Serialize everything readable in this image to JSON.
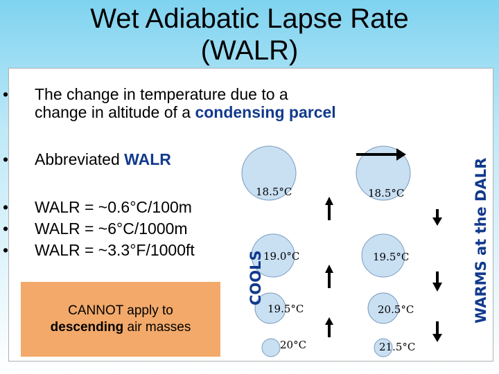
{
  "title": {
    "line1": "Wet Adiabatic Lapse Rate",
    "line2": "(WALR)"
  },
  "bullets": {
    "b1": {
      "marker": "•",
      "line1": "The change in temperature due to a",
      "line2_pre": "change in altitude of a ",
      "line2_em": "condensing parcel"
    },
    "b2": {
      "marker": "•",
      "pre": "Abbreviated ",
      "em": "WALR"
    },
    "b3": {
      "marker": "•",
      "text": "WALR = ~0.6°C/100m"
    },
    "b4": {
      "marker": "•",
      "text": "WALR = ~6°C/1000m"
    },
    "b5": {
      "marker": "•",
      "text": "WALR = ~3.3°F/1000ft"
    }
  },
  "note": {
    "line1": "CANNOT apply to",
    "line2_em": "descending",
    "line2_post": " air masses"
  },
  "labels": {
    "cools": "COOLS",
    "warms": "WARMS at the DALR"
  },
  "temps": {
    "left": [
      "18.5°C",
      "19.0°C",
      "19.5°C",
      "20°C"
    ],
    "right": [
      "18.5°C",
      "19.5°C",
      "20.5°C",
      "21.5°C"
    ]
  },
  "colors": {
    "parcel_fill": "#c9dff2",
    "parcel_stroke": "#7a9bbd",
    "accent": "#123a8c",
    "note_bg": "#f2a96a"
  }
}
